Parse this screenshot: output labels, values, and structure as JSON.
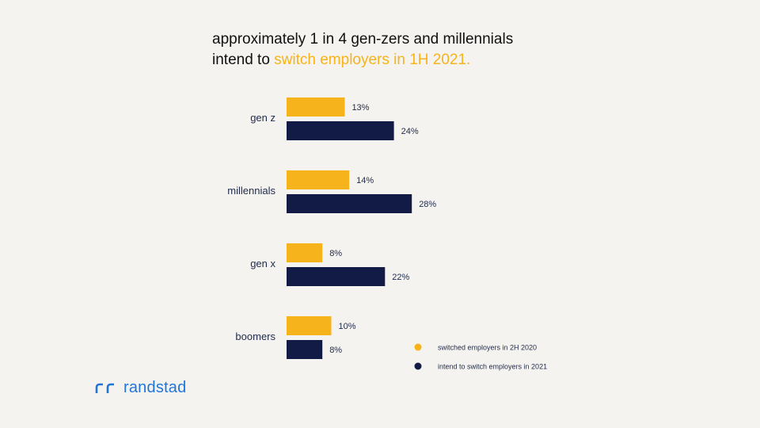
{
  "title": {
    "line1": "approximately 1 in 4 gen-zers and millennials",
    "line2_prefix": "intend to ",
    "line2_highlight": "switch employers in 1H 2021."
  },
  "chart_data": {
    "type": "bar",
    "orientation": "horizontal",
    "categories": [
      "gen z",
      "millennials",
      "gen x",
      "boomers"
    ],
    "series": [
      {
        "name": "switched employers in 2H 2020",
        "values": [
          13,
          14,
          8,
          10
        ],
        "color": "#f7b31b"
      },
      {
        "name": "intend to switch employers in 2021",
        "values": [
          24,
          28,
          22,
          8
        ],
        "color": "#111b45"
      }
    ],
    "value_suffix": "%",
    "legend_position": "bottom-right",
    "xlim": [
      0,
      30
    ]
  },
  "brand": {
    "name": "randstad",
    "color": "#2175d9"
  }
}
